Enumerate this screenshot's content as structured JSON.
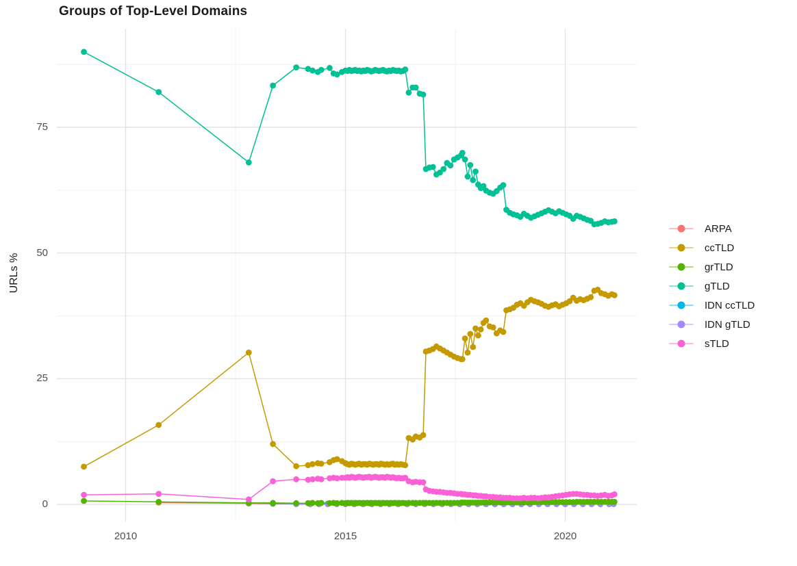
{
  "chart_data": {
    "type": "line",
    "title": "Groups of Top-Level Domains",
    "xlabel": "",
    "ylabel": "URLs %",
    "grid": "major+minor",
    "legend_position": "right",
    "background": "#ffffff",
    "major_grid_color": "#e3e3e3",
    "minor_grid_color": "#efefef",
    "axis_text_color": "#4d4d4d",
    "x_tick_values": [
      2010,
      2015,
      2020
    ],
    "x_tick_labels": [
      "2010",
      "2015",
      "2020"
    ],
    "x_minor_ticks": [
      2012.5,
      2017.5
    ],
    "y_tick_values": [
      0,
      25,
      50,
      75
    ],
    "y_tick_labels": [
      "0",
      "25",
      "50",
      "75"
    ],
    "y_minor_ticks": [
      12.5,
      37.5,
      62.5,
      87.5
    ],
    "xlim": [
      2008.45,
      2021.65
    ],
    "ylim": [
      -3.5,
      94.6
    ],
    "x_grid_main": [
      2009.05,
      2010.75,
      2012.8,
      2013.35,
      2013.88,
      2014.15,
      2014.25,
      2014.37,
      2014.45,
      2014.64,
      2014.73,
      2014.81,
      2014.92,
      2015.0,
      2015.045,
      2015.09,
      2015.135,
      2015.18,
      2015.225,
      2015.27,
      2015.315,
      2015.36,
      2015.405,
      2015.45,
      2015.495,
      2015.54,
      2015.585,
      2015.63,
      2015.675,
      2015.72,
      2015.765,
      2015.81,
      2015.855,
      2015.9,
      2015.945,
      2015.99,
      2016.035,
      2016.08,
      2016.125,
      2016.17,
      2016.215,
      2016.26,
      2016.31,
      2016.36,
      2016.44,
      2016.53,
      2016.6,
      2016.69,
      2016.77,
      2016.83,
      2016.91,
      2016.99,
      2017.07,
      2017.15,
      2017.23,
      2017.31,
      2017.39,
      2017.47,
      2017.55,
      2017.63,
      2017.66,
      2017.72,
      2017.78,
      2017.84,
      2017.9,
      2017.96,
      2018.02,
      2018.08,
      2018.14,
      2018.2,
      2018.28,
      2018.36,
      2018.44,
      2018.52,
      2018.59,
      2018.66,
      2018.74,
      2018.82,
      2018.9,
      2018.98,
      2019.06,
      2019.14,
      2019.22,
      2019.3,
      2019.38,
      2019.46,
      2019.54,
      2019.62,
      2019.7,
      2019.78,
      2019.86,
      2019.94,
      2020.02,
      2020.1,
      2020.18,
      2020.26,
      2020.34,
      2020.42,
      2020.5,
      2020.58,
      2020.66,
      2020.74,
      2020.82,
      2020.9,
      2020.98,
      2021.06,
      2021.12
    ],
    "series": [
      {
        "name": "ARPA",
        "color": "#F8766D",
        "x": [
          2010.75,
          2012.8,
          2013.35,
          2013.88,
          2014.2,
          2014.4,
          2014.6,
          2014.8,
          2015.0,
          2015.2,
          2015.4,
          2015.6,
          2015.8,
          2016.0,
          2016.2,
          2016.4,
          2016.6,
          2016.8,
          2017.0,
          2017.2,
          2017.4,
          2017.6,
          2017.8,
          2018.0,
          2018.2,
          2018.4,
          2018.6,
          2018.8,
          2019.0,
          2019.2,
          2019.4,
          2019.6,
          2019.8,
          2020.0,
          2020.2,
          2020.4,
          2020.6,
          2020.8,
          2021.0
        ],
        "y": [
          0.35,
          0.2,
          0.12,
          0.08,
          0.05,
          0.05,
          0.05,
          0.05,
          0.05,
          0.05,
          0.05,
          0.05,
          0.05,
          0.05,
          0.05,
          0.05,
          0.05,
          0.05,
          0.05,
          0.05,
          0.05,
          0.05,
          0.05,
          0.05,
          0.05,
          0.05,
          0.05,
          0.05,
          0.05,
          0.05,
          0.05,
          0.05,
          0.05,
          0.05,
          0.05,
          0.05,
          0.05,
          0.05,
          0.05
        ]
      },
      {
        "name": "IDN ccTLD",
        "color": "#00B6EB",
        "x": [
          2012.8,
          2013.35,
          2013.88,
          2014.2,
          2014.4,
          2014.6,
          2014.8,
          2015.0,
          2015.2,
          2015.4,
          2015.6,
          2015.8,
          2016.0,
          2016.2,
          2016.4,
          2016.6,
          2016.8,
          2017.0,
          2017.2,
          2017.4,
          2017.6,
          2017.8,
          2018.0,
          2018.2,
          2018.4,
          2018.6,
          2018.8,
          2019.0,
          2019.2,
          2019.4,
          2019.6,
          2019.8,
          2020.0,
          2020.2,
          2020.4,
          2020.6,
          2020.8,
          2021.0
        ],
        "y": [
          0.25,
          0.2,
          0.15,
          0.15,
          0.15,
          0.15,
          0.15,
          0.15,
          0.15,
          0.15,
          0.15,
          0.15,
          0.15,
          0.12,
          0.12,
          0.12,
          0.12,
          0.12,
          0.12,
          0.12,
          0.12,
          0.12,
          0.12,
          0.1,
          0.1,
          0.1,
          0.1,
          0.1,
          0.1,
          0.1,
          0.1,
          0.1,
          0.1,
          0.1,
          0.1,
          0.1,
          0.1,
          0.1
        ]
      },
      {
        "name": "IDN gTLD",
        "color": "#A58AFF",
        "x": [
          2013.88,
          2014.2,
          2014.4,
          2014.6,
          2014.8,
          2015.0,
          2015.2,
          2015.4,
          2015.6,
          2015.8,
          2016.0,
          2016.2,
          2016.4,
          2016.6,
          2016.8,
          2017.0,
          2017.2,
          2017.4,
          2017.6,
          2017.8,
          2018.0,
          2018.2,
          2018.4,
          2018.6,
          2018.8,
          2019.0,
          2019.2,
          2019.4,
          2019.6,
          2019.8,
          2020.0,
          2020.2,
          2020.4,
          2020.6,
          2020.8,
          2021.0,
          2021.1
        ],
        "y": [
          0.05,
          0.05,
          0.05,
          0.05,
          0.05,
          0.05,
          0.05,
          0.05,
          0.05,
          0.05,
          0.05,
          0.05,
          0.05,
          0.05,
          0.05,
          0.05,
          0.05,
          0.05,
          0.05,
          0.05,
          0.05,
          0.05,
          0.05,
          0.05,
          0.05,
          0.05,
          0.05,
          0.05,
          0.05,
          0.05,
          0.05,
          0.05,
          0.05,
          0.05,
          0.05,
          0.05,
          0.05
        ]
      },
      {
        "name": "grTLD",
        "color": "#53B400",
        "x_ref": "x_grid_main",
        "y": [
          0.7,
          0.5,
          0.3,
          0.3,
          0.25,
          0.25,
          0.3,
          0.25,
          0.3,
          0.25,
          0.3,
          0.25,
          0.3,
          0.25,
          0.3,
          0.25,
          0.3,
          0.25,
          0.3,
          0.25,
          0.3,
          0.25,
          0.3,
          0.25,
          0.3,
          0.25,
          0.3,
          0.25,
          0.3,
          0.25,
          0.3,
          0.25,
          0.3,
          0.25,
          0.3,
          0.25,
          0.3,
          0.25,
          0.3,
          0.25,
          0.3,
          0.25,
          0.3,
          0.25,
          0.3,
          0.3,
          0.3,
          0.3,
          0.3,
          0.3,
          0.3,
          0.3,
          0.3,
          0.3,
          0.3,
          0.3,
          0.3,
          0.3,
          0.3,
          0.35,
          0.35,
          0.35,
          0.35,
          0.35,
          0.35,
          0.35,
          0.35,
          0.35,
          0.35,
          0.4,
          0.4,
          0.4,
          0.4,
          0.4,
          0.4,
          0.4,
          0.4,
          0.4,
          0.4,
          0.4,
          0.4,
          0.4,
          0.4,
          0.45,
          0.45,
          0.45,
          0.45,
          0.45,
          0.45,
          0.45,
          0.45,
          0.45,
          0.45,
          0.45,
          0.45,
          0.5,
          0.5,
          0.5,
          0.5,
          0.5,
          0.5,
          0.5,
          0.5,
          0.5,
          0.5,
          0.5,
          0.5
        ]
      },
      {
        "name": "ccTLD",
        "color": "#C49A00",
        "x_ref": "x_grid_main",
        "y": [
          7.5,
          15.8,
          30.2,
          12.0,
          7.6,
          7.8,
          8.0,
          8.2,
          8.1,
          8.4,
          8.8,
          9.0,
          8.6,
          8.2,
          8.0,
          7.9,
          8.1,
          8.0,
          7.9,
          8.0,
          8.1,
          7.9,
          8.0,
          8.0,
          7.9,
          8.1,
          8.0,
          7.9,
          8.0,
          8.0,
          7.9,
          8.1,
          8.0,
          7.9,
          8.0,
          7.9,
          8.0,
          8.1,
          7.9,
          8.0,
          7.9,
          8.0,
          7.9,
          7.8,
          13.2,
          12.9,
          13.5,
          13.3,
          13.8,
          30.4,
          30.6,
          30.9,
          31.4,
          31.0,
          30.6,
          30.2,
          29.8,
          29.4,
          29.1,
          28.9,
          28.9,
          33.0,
          30.2,
          33.9,
          31.3,
          35.0,
          33.6,
          34.8,
          36.1,
          36.6,
          35.4,
          35.2,
          34.0,
          34.6,
          34.3,
          38.6,
          38.8,
          39.1,
          39.7,
          40.0,
          39.5,
          40.2,
          40.7,
          40.4,
          40.2,
          39.9,
          39.5,
          39.3,
          39.6,
          39.8,
          39.4,
          39.7,
          40.0,
          40.4,
          41.1,
          40.5,
          40.8,
          40.6,
          40.9,
          41.2,
          42.5,
          42.7,
          42.0,
          41.8,
          41.5,
          41.8,
          41.6
        ]
      },
      {
        "name": "gTLD",
        "color": "#00C094",
        "x_ref": "x_grid_main",
        "y": [
          90.0,
          82.0,
          68.0,
          83.3,
          86.9,
          86.6,
          86.3,
          86.0,
          86.4,
          86.8,
          85.7,
          85.5,
          86.0,
          86.3,
          86.2,
          86.4,
          86.2,
          86.3,
          86.4,
          86.2,
          86.3,
          86.1,
          86.3,
          86.2,
          86.4,
          86.3,
          86.1,
          86.2,
          86.4,
          86.3,
          86.2,
          86.3,
          86.4,
          86.2,
          86.1,
          86.3,
          86.2,
          86.4,
          86.3,
          86.2,
          86.3,
          86.1,
          86.2,
          86.5,
          81.9,
          82.9,
          82.9,
          81.7,
          81.5,
          66.7,
          67.0,
          67.1,
          65.6,
          66.0,
          66.7,
          67.9,
          67.4,
          68.6,
          69.0,
          69.4,
          69.9,
          68.6,
          65.2,
          67.5,
          64.5,
          66.2,
          63.6,
          62.9,
          63.3,
          62.4,
          62.0,
          61.8,
          62.3,
          63.0,
          63.5,
          58.6,
          58.0,
          57.7,
          57.5,
          57.2,
          57.8,
          57.4,
          57.0,
          57.3,
          57.6,
          57.9,
          58.2,
          58.5,
          58.2,
          57.9,
          58.3,
          58.0,
          57.7,
          57.4,
          56.8,
          57.4,
          57.2,
          56.9,
          56.6,
          56.4,
          55.7,
          55.8,
          56.0,
          56.3,
          56.1,
          56.2,
          56.3
        ]
      },
      {
        "name": "sTLD",
        "color": "#FB61D7",
        "x_ref": "x_grid_main",
        "y": [
          1.9,
          2.1,
          1.0,
          4.6,
          5.0,
          4.9,
          5.0,
          5.1,
          5.0,
          5.2,
          5.3,
          5.2,
          5.3,
          5.3,
          5.4,
          5.3,
          5.5,
          5.4,
          5.3,
          5.4,
          5.5,
          5.4,
          5.3,
          5.4,
          5.4,
          5.5,
          5.3,
          5.4,
          5.5,
          5.4,
          5.3,
          5.4,
          5.4,
          5.3,
          5.5,
          5.4,
          5.3,
          5.4,
          5.3,
          5.2,
          5.3,
          5.2,
          5.2,
          5.3,
          4.6,
          4.4,
          4.5,
          4.4,
          4.4,
          3.0,
          2.7,
          2.6,
          2.5,
          2.5,
          2.4,
          2.3,
          2.3,
          2.2,
          2.1,
          2.1,
          2.0,
          2.0,
          1.9,
          1.9,
          1.8,
          1.8,
          1.7,
          1.7,
          1.6,
          1.6,
          1.5,
          1.5,
          1.4,
          1.4,
          1.3,
          1.3,
          1.3,
          1.2,
          1.2,
          1.2,
          1.3,
          1.2,
          1.3,
          1.3,
          1.2,
          1.3,
          1.4,
          1.4,
          1.5,
          1.6,
          1.7,
          1.8,
          1.9,
          2.0,
          2.1,
          2.1,
          2.0,
          1.9,
          1.9,
          1.8,
          1.8,
          1.7,
          1.8,
          1.9,
          1.7,
          1.8,
          2.0
        ]
      }
    ],
    "legend": [
      {
        "label": "ARPA",
        "color": "#F8766D"
      },
      {
        "label": "ccTLD",
        "color": "#C49A00"
      },
      {
        "label": "grTLD",
        "color": "#53B400"
      },
      {
        "label": "gTLD",
        "color": "#00C094"
      },
      {
        "label": "IDN ccTLD",
        "color": "#00B6EB"
      },
      {
        "label": "IDN gTLD",
        "color": "#A58AFF"
      },
      {
        "label": "sTLD",
        "color": "#FB61D7"
      }
    ]
  }
}
